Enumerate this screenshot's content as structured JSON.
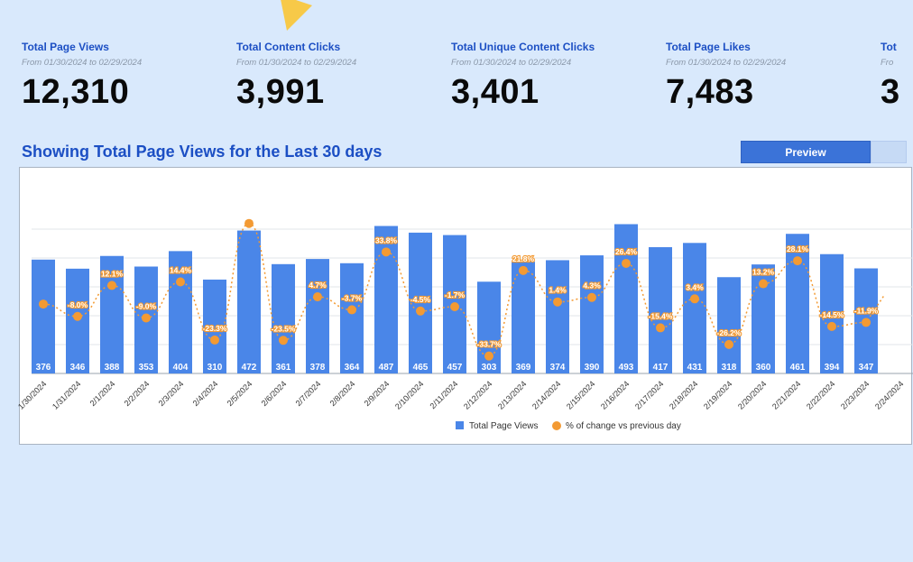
{
  "kpis": [
    {
      "title": "Total Page Views",
      "subtitle": "From 01/30/2024 to 02/29/2024",
      "value": "12,310"
    },
    {
      "title": "Total Content Clicks",
      "subtitle": "From 01/30/2024 to 02/29/2024",
      "value": "3,991"
    },
    {
      "title": "Total Unique Content Clicks",
      "subtitle": "From 01/30/2024 to 02/29/2024",
      "value": "3,401"
    },
    {
      "title": "Total Page Likes",
      "subtitle": "From 01/30/2024 to 02/29/2024",
      "value": "7,483"
    },
    {
      "title": "Tot",
      "subtitle": "Fro",
      "value": "3"
    }
  ],
  "section_title": "Showing Total Page Views for the Last 30 days",
  "tabs": {
    "preview_label": "Preview"
  },
  "colors": {
    "bar": "#4a86e8",
    "line": "#f39a33",
    "accent": "#1c4fc4"
  },
  "chart_data": {
    "type": "bar",
    "categories": [
      "1/30/2024",
      "1/31/2024",
      "2/1/2024",
      "2/2/2024",
      "2/3/2024",
      "2/4/2024",
      "2/5/2024",
      "2/6/2024",
      "2/7/2024",
      "2/8/2024",
      "2/9/2024",
      "2/10/2024",
      "2/11/2024",
      "2/12/2024",
      "2/13/2024",
      "2/14/2024",
      "2/15/2024",
      "2/16/2024",
      "2/17/2024",
      "2/18/2024",
      "2/19/2024",
      "2/20/2024",
      "2/21/2024",
      "2/22/2024",
      "2/23/2024",
      "2/24/2024"
    ],
    "series": [
      {
        "name": "Total Page Views",
        "type": "bar",
        "values": [
          376,
          346,
          388,
          353,
          404,
          310,
          472,
          361,
          378,
          364,
          487,
          465,
          457,
          303,
          369,
          374,
          390,
          493,
          417,
          431,
          318,
          360,
          461,
          394,
          347,
          null
        ],
        "labels": [
          "376",
          "346",
          "388",
          "353",
          "404",
          "310",
          "472",
          "361",
          "378",
          "364",
          "487",
          "465",
          "457",
          "303",
          "369",
          "374",
          "390",
          "493",
          "417",
          "431",
          "318",
          "360",
          "461",
          "394",
          "347",
          ""
        ]
      },
      {
        "name": "% of change vs previous day",
        "type": "line",
        "values": [
          0,
          -8.0,
          12.1,
          -9.0,
          14.4,
          -23.3,
          52.3,
          -23.5,
          4.7,
          -3.7,
          33.8,
          -4.5,
          -1.7,
          -33.7,
          21.8,
          1.4,
          4.3,
          26.4,
          -15.4,
          3.4,
          -26.2,
          13.2,
          28.1,
          -14.5,
          -11.9,
          null
        ],
        "labels": [
          "",
          "-8.0%",
          "12.1%",
          "-9.0%",
          "14.4%",
          "-23.3%",
          "",
          "-23.5%",
          "4.7%",
          "-3.7%",
          "33.8%",
          "-4.5%",
          "-1.7%",
          "-33.7%",
          "21.8%",
          "1.4%",
          "4.3%",
          "26.4%",
          "-15.4%",
          "3.4%",
          "-26.2%",
          "13.2%",
          "28.1%",
          "-14.5%",
          "-11.9%",
          ""
        ]
      }
    ],
    "bar_ylim": [
      0,
      560
    ],
    "line_ylim": [
      -45,
      65
    ],
    "grid": true,
    "legend_position": "bottom"
  }
}
